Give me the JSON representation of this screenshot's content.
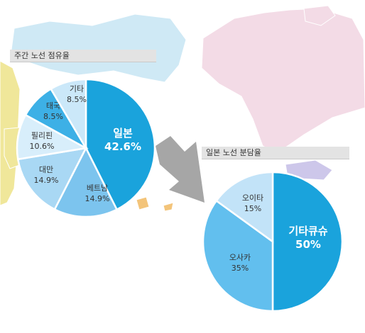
{
  "colors": {
    "map_pink": "#f3dbe6",
    "map_blue": "#cfe9f5",
    "map_yellow": "#f0e79a",
    "map_purple": "#cdc7ea",
    "map_orange": "#f3c47a",
    "arrow": "#a6a6a6"
  },
  "chart_data": [
    {
      "type": "pie",
      "title": "주간 노선 점유율",
      "slices": [
        {
          "label": "일본",
          "value": 42.6,
          "display": "42.6%",
          "color": "#1aa3dc",
          "text_color": "#ffffff"
        },
        {
          "label": "베트남",
          "value": 14.9,
          "display": "14.9%",
          "color": "#7cc4ee",
          "text_color": "#333333"
        },
        {
          "label": "대만",
          "value": 14.9,
          "display": "14.9%",
          "color": "#a9d8f4",
          "text_color": "#333333"
        },
        {
          "label": "필리핀",
          "value": 10.6,
          "display": "10.6%",
          "color": "#d8eefb",
          "text_color": "#333333"
        },
        {
          "label": "태국",
          "value": 8.5,
          "display": "8.5%",
          "color": "#3db0e6",
          "text_color": "#333333"
        },
        {
          "label": "기타",
          "value": 8.5,
          "display": "8.5%",
          "color": "#cbe8f9",
          "text_color": "#333333"
        }
      ]
    },
    {
      "type": "pie",
      "title": "일본 노선 분담율",
      "slices": [
        {
          "label": "기타큐슈",
          "value": 50,
          "display": "50%",
          "color": "#1aa3dc",
          "text_color": "#ffffff"
        },
        {
          "label": "오사카",
          "value": 35,
          "display": "35%",
          "color": "#62bfee",
          "text_color": "#333333"
        },
        {
          "label": "오이타",
          "value": 15,
          "display": "15%",
          "color": "#c2e3f8",
          "text_color": "#333333"
        }
      ]
    }
  ]
}
